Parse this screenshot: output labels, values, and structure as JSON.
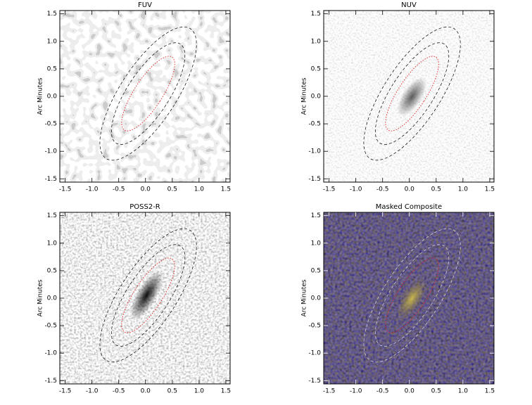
{
  "chart_data": [
    {
      "type": "image",
      "title": "FUV",
      "ylabel": "Arc Minutes",
      "xlim": [
        -1.6,
        1.58
      ],
      "ylim": [
        -1.56,
        1.56
      ],
      "xticks": [
        -1.5,
        {
          "value": -1,
          "label": "-1.0"
        },
        -0.5,
        {
          "value": 0,
          "label": "0.0"
        },
        0.5,
        {
          "value": 1,
          "label": "1.0"
        },
        1.5
      ],
      "yticks": [
        -1.5,
        {
          "value": -1,
          "label": "-1.0"
        },
        -0.5,
        {
          "value": 0,
          "label": "0.0"
        },
        0.5,
        {
          "value": 1,
          "label": "1.0"
        },
        1.5
      ]
    },
    {
      "type": "image",
      "title": "NUV",
      "ylabel": "Arc Minutes",
      "xlim": [
        -1.6,
        1.58
      ],
      "ylim": [
        -1.56,
        1.56
      ],
      "xticks": [
        -1.5,
        {
          "value": -1,
          "label": "-1.0"
        },
        -0.5,
        {
          "value": 0,
          "label": "0.0"
        },
        0.5,
        {
          "value": 1,
          "label": "1.0"
        },
        1.5
      ],
      "yticks": [
        -1.5,
        {
          "value": -1,
          "label": "-1.0"
        },
        -0.5,
        {
          "value": 0,
          "label": "0.0"
        },
        0.5,
        {
          "value": 1,
          "label": "1.0"
        },
        1.5
      ]
    },
    {
      "type": "image",
      "title": "POSS2-R",
      "ylabel": "Arc Minutes",
      "xlim": [
        -1.6,
        1.58
      ],
      "ylim": [
        -1.56,
        1.56
      ],
      "xticks": [
        -1.5,
        {
          "value": -1,
          "label": "-1.0"
        },
        -0.5,
        {
          "value": 0,
          "label": "0.0"
        },
        0.5,
        {
          "value": 1,
          "label": "1.0"
        },
        1.5
      ],
      "yticks": [
        -1.5,
        {
          "value": -1,
          "label": "-1.0"
        },
        -0.5,
        {
          "value": 0,
          "label": "0.0"
        },
        0.5,
        {
          "value": 1,
          "label": "1.0"
        },
        1.5
      ]
    },
    {
      "type": "image",
      "title": "Masked Composite",
      "ylabel": "Arc Minutes",
      "xlim": [
        -1.6,
        1.58
      ],
      "ylim": [
        -1.56,
        1.56
      ],
      "xticks": [
        -1.5,
        {
          "value": -1,
          "label": "-1.0"
        },
        -0.5,
        {
          "value": 0,
          "label": "0.0"
        },
        0.5,
        {
          "value": 1,
          "label": "1.0"
        },
        1.5
      ],
      "yticks": [
        -1.5,
        {
          "value": -1,
          "label": "-1.0"
        },
        -0.5,
        {
          "value": 0,
          "label": "0.0"
        },
        0.5,
        {
          "value": 1,
          "label": "1.0"
        },
        1.5
      ]
    }
  ]
}
